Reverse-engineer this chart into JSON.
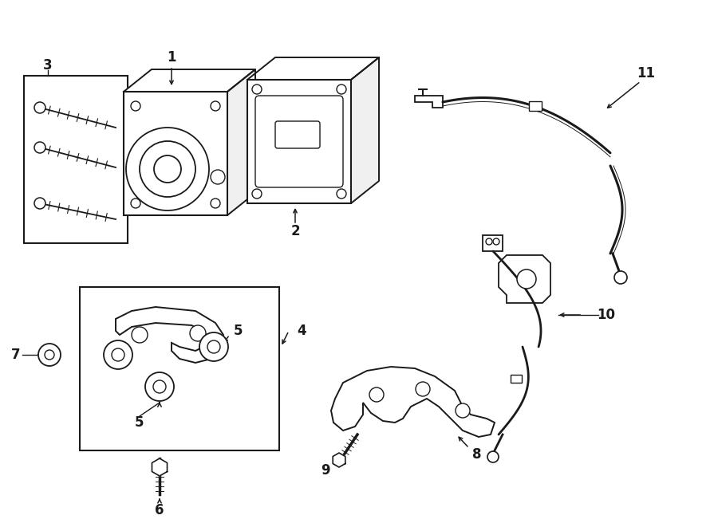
{
  "bg_color": "#ffffff",
  "line_color": "#1a1a1a",
  "figsize": [
    9.0,
    6.61
  ],
  "dpi": 100,
  "lw_main": 1.4,
  "lw_thin": 0.9,
  "label_fontsize": 12
}
